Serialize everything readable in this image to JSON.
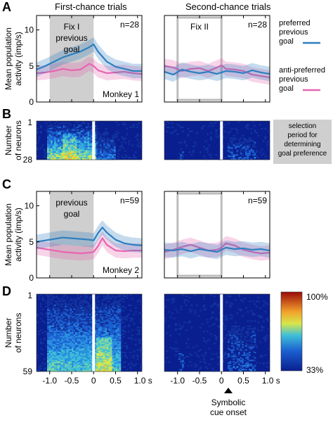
{
  "headers": {
    "left": "First-chance trials",
    "right": "Second-chance trials"
  },
  "panel_labels": [
    "A",
    "B",
    "C",
    "D"
  ],
  "legend": {
    "preferred": "preferred\nprevious\ngoal",
    "anti": "anti-preferred\nprevious\ngoal"
  },
  "colors": {
    "preferred": "#2e7fc0",
    "anti": "#e765b0",
    "shade": "#cfcfcf",
    "heat_bg": "#0a1f8f"
  },
  "selection_note": "selection\nperiod for\ndetermining\ngoal preference",
  "xaxis": {
    "ticks": [
      "-1.0",
      "-0.5",
      "0",
      "0.5",
      "1.0 s"
    ],
    "ticks_right": [
      "-1.0",
      "-0.5",
      "0",
      "0.5",
      "1.0 s"
    ],
    "cue_label": "Symbolic\ncue onset"
  },
  "colorbar": {
    "max": "100%",
    "min": "33%"
  },
  "chart_data": [
    {
      "id": "A-left",
      "type": "line",
      "ylabel": "Mean population\nactivity (imp/s)",
      "ylim": [
        0,
        12
      ],
      "yticks": [
        "0",
        "5",
        "10"
      ],
      "xlim": [
        -1.3,
        1.1
      ],
      "n": "n=28",
      "shade_label": "Fix I\nprevious\ngoal",
      "monkey": "Monkey 1",
      "shade_range": [
        -1.0,
        0.0
      ],
      "x": [
        -1.3,
        -1.1,
        -0.9,
        -0.7,
        -0.5,
        -0.3,
        -0.1,
        0.0,
        0.1,
        0.3,
        0.5,
        0.7,
        0.9,
        1.1
      ],
      "series": [
        {
          "values": [
            4.5,
            5.0,
            5.6,
            6.2,
            6.6,
            7.0,
            7.6,
            8.0,
            7.0,
            5.6,
            4.9,
            4.6,
            4.3,
            4.3
          ]
        },
        {
          "values": [
            4.0,
            4.1,
            4.3,
            4.6,
            4.4,
            4.5,
            5.3,
            5.0,
            4.4,
            4.0,
            4.1,
            4.2,
            4.0,
            3.9
          ]
        }
      ]
    },
    {
      "id": "A-right",
      "type": "line",
      "ylim": [
        0,
        12
      ],
      "xlim": [
        -1.3,
        1.1
      ],
      "n": "n=28",
      "shade_label": "Fix II",
      "shade_range": [
        -1.0,
        0.0
      ],
      "x": [
        -1.3,
        -1.1,
        -0.9,
        -0.7,
        -0.5,
        -0.3,
        -0.1,
        0.0,
        0.1,
        0.3,
        0.5,
        0.7,
        0.9,
        1.1
      ],
      "series": [
        {
          "values": [
            4.2,
            3.8,
            4.5,
            4.2,
            4.0,
            4.2,
            3.9,
            4.1,
            4.3,
            4.2,
            4.0,
            4.4,
            4.1,
            3.9
          ]
        },
        {
          "values": [
            5.0,
            4.8,
            4.3,
            4.6,
            4.7,
            4.3,
            4.8,
            5.1,
            4.6,
            4.5,
            4.3,
            3.8,
            3.6,
            3.4
          ]
        }
      ]
    },
    {
      "id": "C-left",
      "type": "line",
      "ylabel": "Mean population\nactivity (imp/s)",
      "ylim": [
        0,
        12
      ],
      "yticks": [
        "0",
        "5",
        "10"
      ],
      "xlim": [
        -1.3,
        1.1
      ],
      "n": "n=59",
      "shade_label": "previous\ngoal",
      "monkey": "Monkey 2",
      "shade_range": [
        -1.0,
        0.0
      ],
      "x": [
        -1.3,
        -1.1,
        -0.9,
        -0.7,
        -0.5,
        -0.3,
        -0.1,
        0.0,
        0.1,
        0.2,
        0.3,
        0.5,
        0.7,
        0.9,
        1.1
      ],
      "series": [
        {
          "values": [
            5.0,
            5.2,
            5.4,
            5.6,
            5.5,
            5.4,
            5.3,
            5.2,
            6.2,
            7.0,
            6.3,
            5.3,
            4.8,
            4.6,
            4.5
          ]
        },
        {
          "values": [
            4.2,
            4.0,
            3.8,
            3.6,
            3.5,
            3.4,
            3.5,
            3.6,
            4.4,
            5.5,
            4.6,
            3.8,
            3.7,
            3.8,
            3.8
          ]
        }
      ]
    },
    {
      "id": "C-right",
      "type": "line",
      "ylim": [
        0,
        12
      ],
      "xlim": [
        -1.3,
        1.1
      ],
      "n": "n=59",
      "shade_range": [
        -1.0,
        0.0
      ],
      "x": [
        -1.3,
        -1.1,
        -0.9,
        -0.7,
        -0.5,
        -0.3,
        -0.1,
        0.0,
        0.1,
        0.3,
        0.5,
        0.7,
        0.9,
        1.1
      ],
      "series": [
        {
          "values": [
            3.9,
            3.8,
            4.0,
            3.7,
            4.0,
            3.8,
            3.6,
            3.9,
            4.2,
            4.0,
            4.1,
            3.9,
            4.0,
            3.8
          ]
        },
        {
          "values": [
            3.6,
            3.9,
            4.3,
            4.6,
            4.2,
            3.8,
            3.9,
            4.2,
            4.8,
            4.5,
            3.9,
            3.6,
            3.4,
            3.5
          ]
        }
      ]
    },
    {
      "id": "B-left",
      "type": "heatmap",
      "ylabel": "Number\nof neurons",
      "ytop": "1",
      "ybottom": "28",
      "rows": 28,
      "density": "high"
    },
    {
      "id": "B-right",
      "type": "heatmap",
      "rows": 28,
      "density": "low"
    },
    {
      "id": "D-left",
      "type": "heatmap",
      "ylabel": "Number\nof neurons",
      "ytop": "1",
      "ybottom": "59",
      "rows": 59,
      "density": "medium"
    },
    {
      "id": "D-right",
      "type": "heatmap",
      "rows": 59,
      "density": "low"
    }
  ]
}
